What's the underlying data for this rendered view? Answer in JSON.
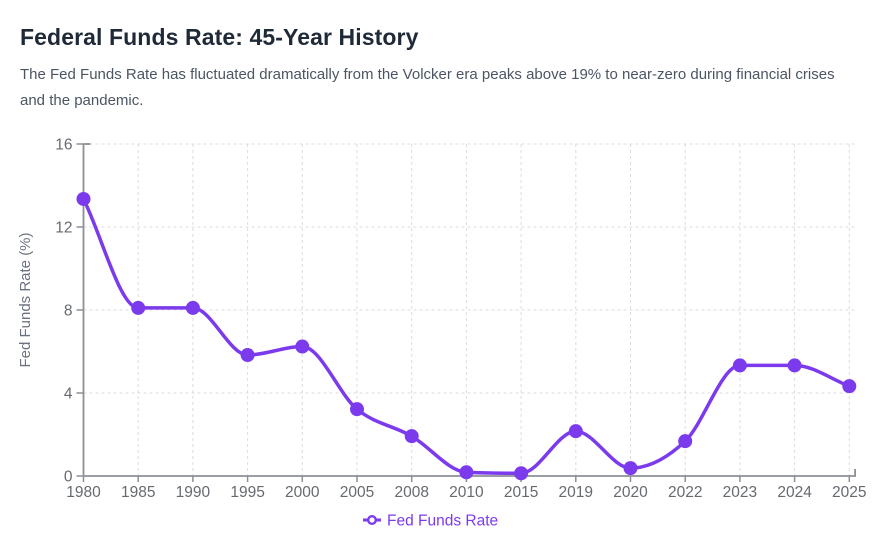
{
  "page": {
    "title": "Federal Funds Rate: 45-Year History",
    "subtitle": "The Fed Funds Rate has fluctuated dramatically from the Volcker era peaks above 19% to near-zero during financial crises and the pandemic."
  },
  "chart_data": {
    "type": "line",
    "categories": [
      "1980",
      "1985",
      "1990",
      "1995",
      "2000",
      "2005",
      "2008",
      "2010",
      "2015",
      "2019",
      "2020",
      "2022",
      "2023",
      "2024",
      "2025"
    ],
    "series": [
      {
        "name": "Fed Funds Rate",
        "values": [
          13.35,
          8.1,
          8.1,
          5.83,
          6.24,
          3.22,
          1.92,
          0.18,
          0.13,
          2.16,
          0.38,
          1.68,
          5.33,
          5.33,
          4.33
        ]
      }
    ],
    "xlabel": "",
    "ylabel": "Fed Funds Rate (%)",
    "ylim": [
      0,
      16
    ],
    "yticks": [
      0,
      4,
      8,
      12,
      16
    ],
    "grid": true,
    "curve": "smooth-monotone",
    "legend": {
      "position": "bottom",
      "label": "Fed Funds Rate"
    },
    "colors": {
      "line": "#7c3aed",
      "marker": "#7c3aed",
      "axis": "#8c8f94",
      "gridline": "#dcdcdc",
      "tick_text": "#666a70",
      "legend_text": "#7c3aed"
    }
  }
}
